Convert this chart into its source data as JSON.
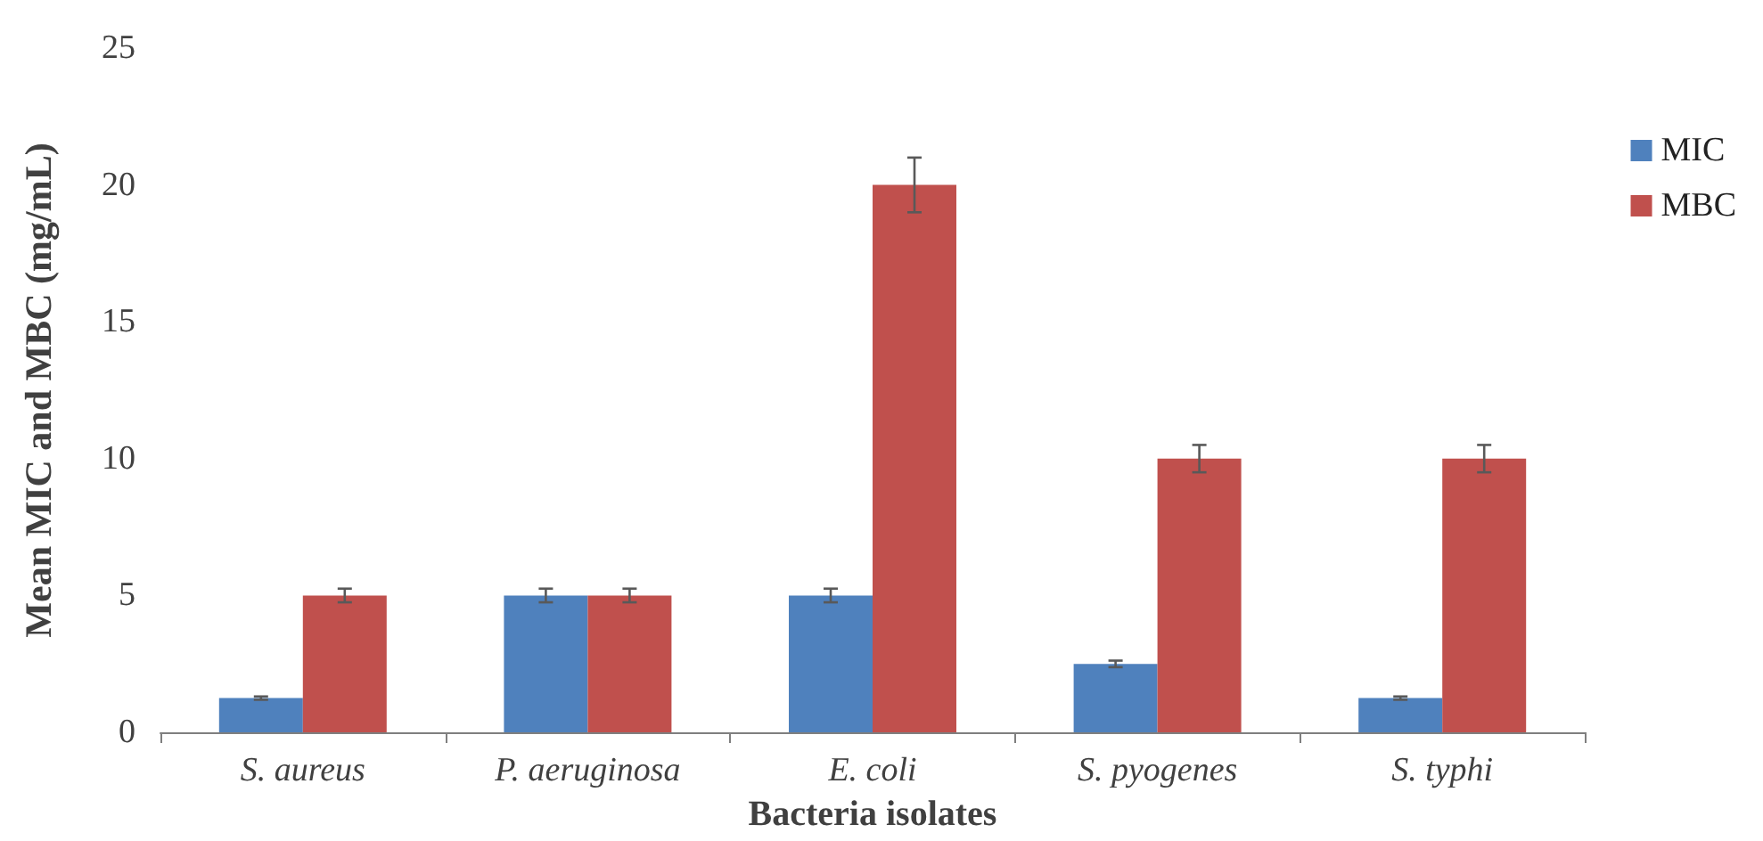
{
  "chart_data": {
    "type": "bar",
    "xlabel": "Bacteria isolates",
    "ylabel": "Mean MIC and MBC (mg/mL)",
    "categories": [
      "S. aureus",
      "P. aeruginosa",
      "E. coli",
      "S. pyogenes",
      "S. typhi"
    ],
    "series": [
      {
        "name": "MIC",
        "color": "#4f81bd",
        "values": [
          1.25,
          5,
          5,
          2.5,
          1.25
        ],
        "errors": [
          0.06,
          0.25,
          0.25,
          0.12,
          0.06
        ]
      },
      {
        "name": "MBC",
        "color": "#c0504d",
        "values": [
          5,
          5,
          20,
          10,
          10
        ],
        "errors": [
          0.25,
          0.25,
          1,
          0.5,
          0.5
        ]
      }
    ],
    "ylim": [
      0,
      25
    ],
    "yticks": [
      0,
      5,
      10,
      15,
      20,
      25
    ],
    "grid": false,
    "legend": "right"
  }
}
